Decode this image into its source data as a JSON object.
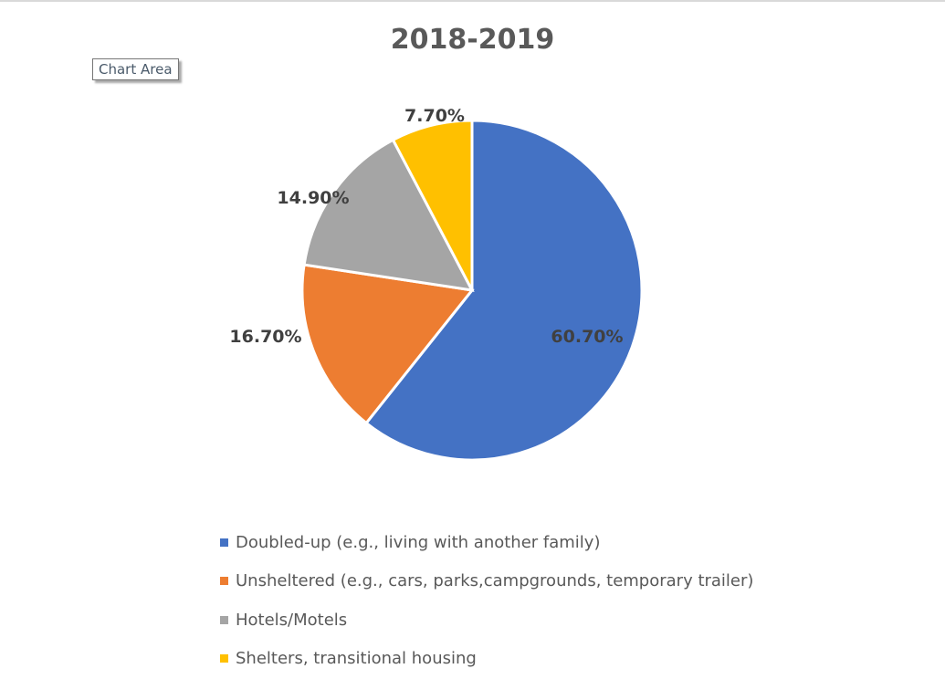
{
  "tooltip": "Chart Area",
  "chart_data": {
    "type": "pie",
    "title": "2018-2019",
    "categories": [
      "Doubled-up (e.g., living with another family)",
      "Unsheltered (e.g., cars, parks,campgrounds, temporary trailer)",
      "Hotels/Motels",
      "Shelters, transitional housing"
    ],
    "values": [
      60.7,
      16.7,
      14.9,
      7.7
    ],
    "data_labels": [
      "60.70%",
      "16.70%",
      "14.90%",
      "7.70%"
    ],
    "colors": [
      "#4472C4",
      "#ED7D31",
      "#A5A5A5",
      "#FFC000"
    ],
    "legend_position": "bottom"
  }
}
